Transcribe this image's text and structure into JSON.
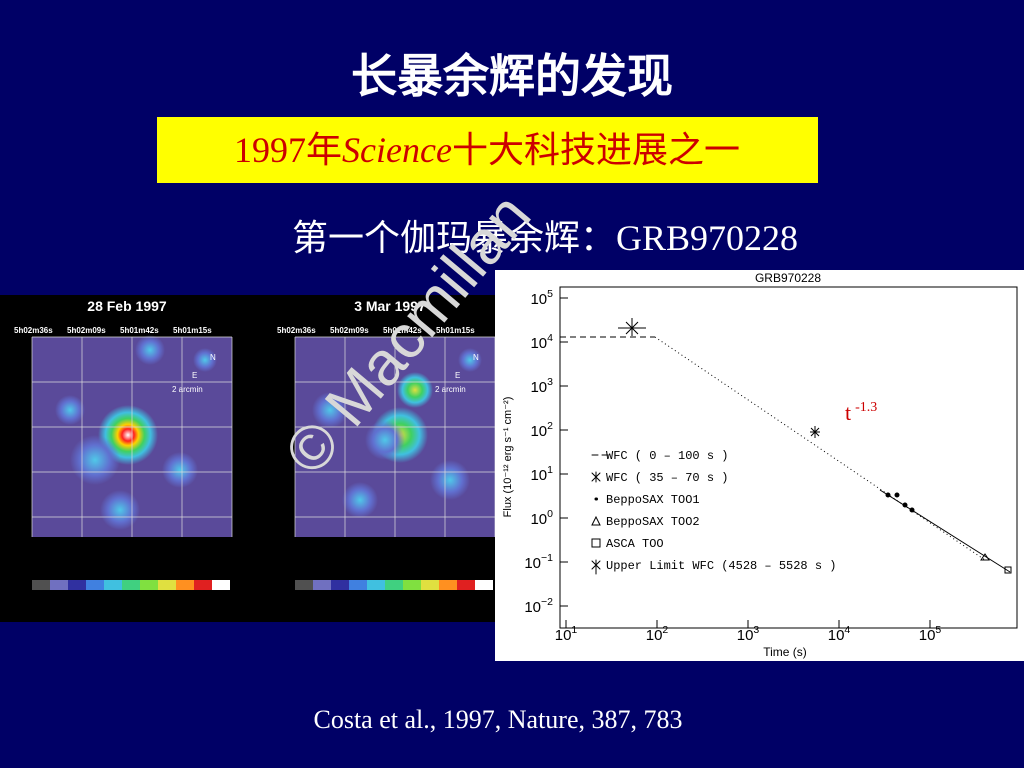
{
  "title": "长暴余辉的发现",
  "highlight": {
    "year": "1997年",
    "journal": "Science",
    "rest": "十大科技进展之一"
  },
  "subtitle": "第一个伽玛暴余辉：GRB970228",
  "images": {
    "panels": [
      {
        "date": "28 Feb 1997",
        "ra_labels": [
          "5h02m36s",
          "5h02m09s",
          "5h01m42s",
          "5h01m15s"
        ],
        "scale": "2 arcmin",
        "north": "N",
        "east": "E"
      },
      {
        "date": "3 Mar 1997",
        "ra_labels": [
          "5h02m36s",
          "5h02m09s",
          "5h01m42s",
          "5h01m15s"
        ],
        "scale": "2 arcmin",
        "north": "N",
        "east": "E"
      }
    ]
  },
  "plot": {
    "title": "GRB970228",
    "x_label": "Time (s)",
    "y_label": "Flux (10⁻¹² erg s⁻¹ cm⁻²)",
    "x_ticks": [
      {
        "base": "10",
        "exp": "1"
      },
      {
        "base": "10",
        "exp": "2"
      },
      {
        "base": "10",
        "exp": "3"
      },
      {
        "base": "10",
        "exp": "4"
      },
      {
        "base": "10",
        "exp": "5"
      }
    ],
    "y_ticks": [
      {
        "base": "10",
        "exp": "5"
      },
      {
        "base": "10",
        "exp": "4"
      },
      {
        "base": "10",
        "exp": "3"
      },
      {
        "base": "10",
        "exp": "2"
      },
      {
        "base": "10",
        "exp": "1"
      },
      {
        "base": "10",
        "exp": "0"
      },
      {
        "base": "10",
        "exp": "−1"
      },
      {
        "base": "10",
        "exp": "−2"
      }
    ],
    "legend": [
      "WFC ( 0 – 100 s )",
      "WFC ( 35 – 70 s )",
      "BeppoSAX TOO1",
      "BeppoSAX TOO2",
      "ASCA TOO",
      "Upper Limit WFC (4528 – 5528 s )"
    ],
    "annotation": {
      "base": "t",
      "exp": "-1.3"
    },
    "watermark": "© Macmillan"
  },
  "citation": "Costa et al., 1997, Nature, 387, 783"
}
